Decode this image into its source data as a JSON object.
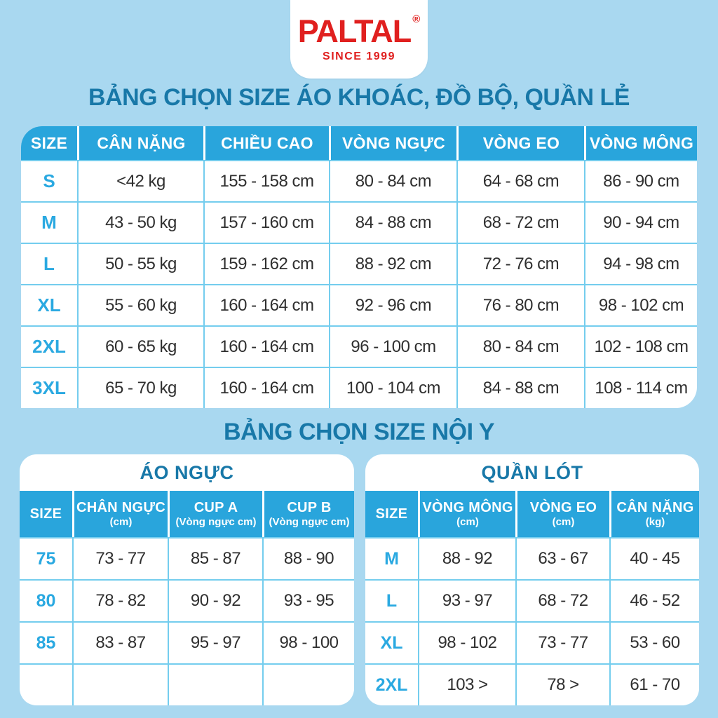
{
  "colors": {
    "background": "#a9d8f0",
    "header_cyan": "#29a5dc",
    "title_teal": "#1878a8",
    "size_cyan": "#2aa9e1",
    "text_dark": "#2f2f2f",
    "separator_cyan": "#74cdee",
    "logo_red": "#e0201f",
    "white": "#ffffff"
  },
  "logo": {
    "brand": "PALTAL",
    "registered": "®",
    "since": "SINCE 1999"
  },
  "section1": {
    "title": "BẢNG CHỌN SIZE ÁO KHOÁC, ĐỒ BỘ, QUẦN LẺ"
  },
  "section2": {
    "title": "BẢNG CHỌN SIZE NỘI Y"
  },
  "main_table": {
    "headers": [
      "SIZE",
      "CÂN NẶNG",
      "CHIỀU CAO",
      "VÒNG NGỰC",
      "VÒNG EO",
      "VÒNG MÔNG"
    ],
    "rows": [
      {
        "size": "S",
        "cells": [
          "<42 kg",
          "155 - 158 cm",
          "80 - 84 cm",
          "64 - 68 cm",
          "86 - 90 cm"
        ]
      },
      {
        "size": "M",
        "cells": [
          "43 - 50 kg",
          "157 - 160 cm",
          "84 - 88 cm",
          "68 - 72 cm",
          "90 - 94 cm"
        ]
      },
      {
        "size": "L",
        "cells": [
          "50 - 55 kg",
          "159 - 162 cm",
          "88 - 92 cm",
          "72 - 76 cm",
          "94 - 98 cm"
        ]
      },
      {
        "size": "XL",
        "cells": [
          "55 - 60 kg",
          "160 - 164 cm",
          "92 - 96 cm",
          "76 - 80 cm",
          "98 - 102 cm"
        ]
      },
      {
        "size": "2XL",
        "cells": [
          "60 - 65 kg",
          "160 - 164 cm",
          "96 - 100 cm",
          "80 - 84 cm",
          "102 - 108 cm"
        ]
      },
      {
        "size": "3XL",
        "cells": [
          "65 - 70 kg",
          "160 - 164 cm",
          "100 - 104 cm",
          "84 - 88 cm",
          "108 - 114 cm"
        ]
      }
    ]
  },
  "bra_table": {
    "title": "ÁO NGỰC",
    "headers": [
      [
        "SIZE",
        ""
      ],
      [
        "CHÂN NGỰC",
        "(cm)"
      ],
      [
        "CUP A",
        "(Vòng ngực cm)"
      ],
      [
        "CUP B",
        "(Vòng ngực cm)"
      ]
    ],
    "rows": [
      [
        "75",
        "73 - 77",
        "85 - 87",
        "88 - 90"
      ],
      [
        "80",
        "78 - 82",
        "90 - 92",
        "93 - 95"
      ],
      [
        "85",
        "83 - 87",
        "95 - 97",
        "98 - 100"
      ],
      [
        "",
        "",
        "",
        ""
      ]
    ]
  },
  "panty_table": {
    "title": "QUẦN LÓT",
    "headers": [
      [
        "SIZE",
        ""
      ],
      [
        "VÒNG MÔNG",
        "(cm)"
      ],
      [
        "VÒNG EO",
        "(cm)"
      ],
      [
        "CÂN NẶNG",
        "(kg)"
      ]
    ],
    "rows": [
      [
        "M",
        "88 - 92",
        "63 - 67",
        "40 - 45"
      ],
      [
        "L",
        "93 - 97",
        "68 - 72",
        "46 - 52"
      ],
      [
        "XL",
        "98 - 102",
        "73 - 77",
        "53 - 60"
      ],
      [
        "2XL",
        "103 >",
        "78 >",
        "61 - 70"
      ]
    ]
  }
}
